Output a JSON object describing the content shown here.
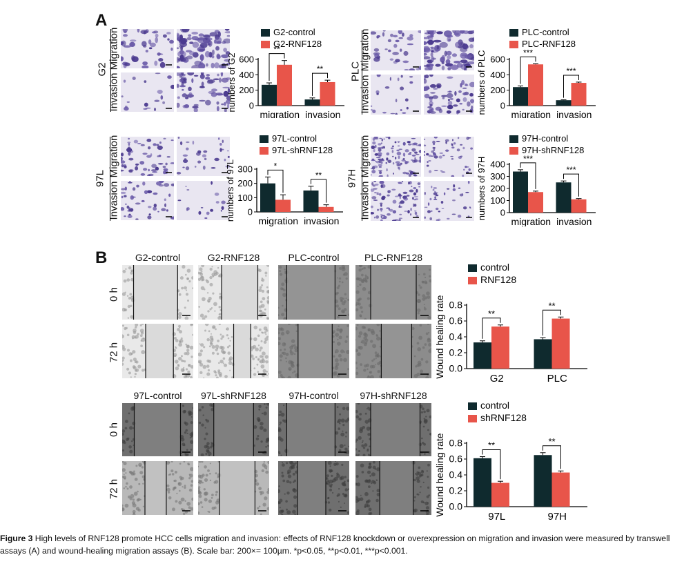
{
  "panel_a": {
    "letter": "A",
    "row_labels": {
      "migration": "Migration",
      "invasion": "Invasion"
    },
    "groups": [
      {
        "cell_line": "G2"
      },
      {
        "cell_line": "PLC"
      },
      {
        "cell_line": "97L"
      },
      {
        "cell_line": "97H"
      }
    ]
  },
  "panel_b": {
    "letter": "B",
    "time_labels": [
      "0 h",
      "72 h"
    ],
    "top_columns": [
      "G2-control",
      "G2-RNF128",
      "PLC-control",
      "PLC-RNF128"
    ],
    "bottom_columns": [
      "97L-control",
      "97L-shRNF128",
      "97H-control",
      "97H-shRNF128"
    ]
  },
  "chart_data": [
    {
      "type": "bar",
      "ylabel": "numbers of G2",
      "categories": [
        "migration",
        "invasion"
      ],
      "series": [
        {
          "name": "G2-control",
          "values": [
            270,
            80
          ],
          "errors": [
            25,
            20
          ]
        },
        {
          "name": "G2-RNF128",
          "values": [
            530,
            305
          ],
          "errors": [
            55,
            25
          ]
        }
      ],
      "ylim": [
        0,
        600
      ],
      "yticks": [
        0,
        200,
        400,
        600
      ],
      "significance": [
        "**",
        "**"
      ],
      "colors": [
        "#0f2a2e",
        "#e8554a"
      ]
    },
    {
      "type": "bar",
      "ylabel": "numbers of PLC",
      "categories": [
        "migration",
        "invasion"
      ],
      "series": [
        {
          "name": "PLC-control",
          "values": [
            240,
            70
          ],
          "errors": [
            15,
            5
          ]
        },
        {
          "name": "PLC-RNF128",
          "values": [
            535,
            295
          ],
          "errors": [
            8,
            10
          ]
        }
      ],
      "ylim": [
        0,
        600
      ],
      "yticks": [
        0,
        200,
        400,
        600
      ],
      "significance": [
        "***",
        "***"
      ],
      "colors": [
        "#0f2a2e",
        "#e8554a"
      ]
    },
    {
      "type": "bar",
      "ylabel": "numbers of 97L",
      "categories": [
        "migration",
        "invasion"
      ],
      "series": [
        {
          "name": "97L-control",
          "values": [
            200,
            150
          ],
          "errors": [
            45,
            30
          ]
        },
        {
          "name": "97L-shRNF128",
          "values": [
            85,
            35
          ],
          "errors": [
            35,
            15
          ]
        }
      ],
      "ylim": [
        0,
        300
      ],
      "yticks": [
        0,
        100,
        200,
        300
      ],
      "significance": [
        "*",
        "**"
      ],
      "colors": [
        "#0f2a2e",
        "#e8554a"
      ]
    },
    {
      "type": "bar",
      "ylabel": "numbers of 97H",
      "categories": [
        "migration",
        "invasion"
      ],
      "series": [
        {
          "name": "97H-control",
          "values": [
            340,
            250
          ],
          "errors": [
            15,
            12
          ]
        },
        {
          "name": "97H-shRNF128",
          "values": [
            170,
            110
          ],
          "errors": [
            8,
            6
          ]
        }
      ],
      "ylim": [
        0,
        400
      ],
      "yticks": [
        0,
        100,
        200,
        300,
        400
      ],
      "significance": [
        "***",
        "***"
      ],
      "colors": [
        "#0f2a2e",
        "#e8554a"
      ]
    },
    {
      "type": "bar",
      "ylabel": "Wound healing rate",
      "categories": [
        "G2",
        "PLC"
      ],
      "series": [
        {
          "name": "control",
          "values": [
            0.33,
            0.37
          ],
          "errors": [
            0.02,
            0.02
          ]
        },
        {
          "name": "RNF128",
          "values": [
            0.53,
            0.63
          ],
          "errors": [
            0.02,
            0.02
          ]
        }
      ],
      "ylim": [
        0,
        0.8
      ],
      "yticks": [
        "0.0",
        "0.2",
        "0.4",
        "0.6",
        "0.8"
      ],
      "significance": [
        "**",
        "**"
      ],
      "colors": [
        "#0f2a2e",
        "#e8554a"
      ]
    },
    {
      "type": "bar",
      "ylabel": "Wound healing rate",
      "categories": [
        "97L",
        "97H"
      ],
      "series": [
        {
          "name": "control",
          "values": [
            0.61,
            0.65
          ],
          "errors": [
            0.02,
            0.03
          ]
        },
        {
          "name": "shRNF128",
          "values": [
            0.3,
            0.43
          ],
          "errors": [
            0.02,
            0.02
          ]
        }
      ],
      "ylim": [
        0,
        0.8
      ],
      "yticks": [
        "0.0",
        "0.2",
        "0.4",
        "0.6",
        "0.8"
      ],
      "significance": [
        "**",
        "**"
      ],
      "colors": [
        "#0f2a2e",
        "#e8554a"
      ]
    }
  ],
  "caption": {
    "label": "Figure 3",
    "text": "High levels of RNF128 promote HCC cells migration and invasion: effects of RNF128 knockdown or overexpression on migration and invasion were measured by transwell assays (A) and wound-healing migration assays (B). Scale bar: 200×= 100µm. *p<0.05, **p<0.01, ***p<0.001."
  }
}
